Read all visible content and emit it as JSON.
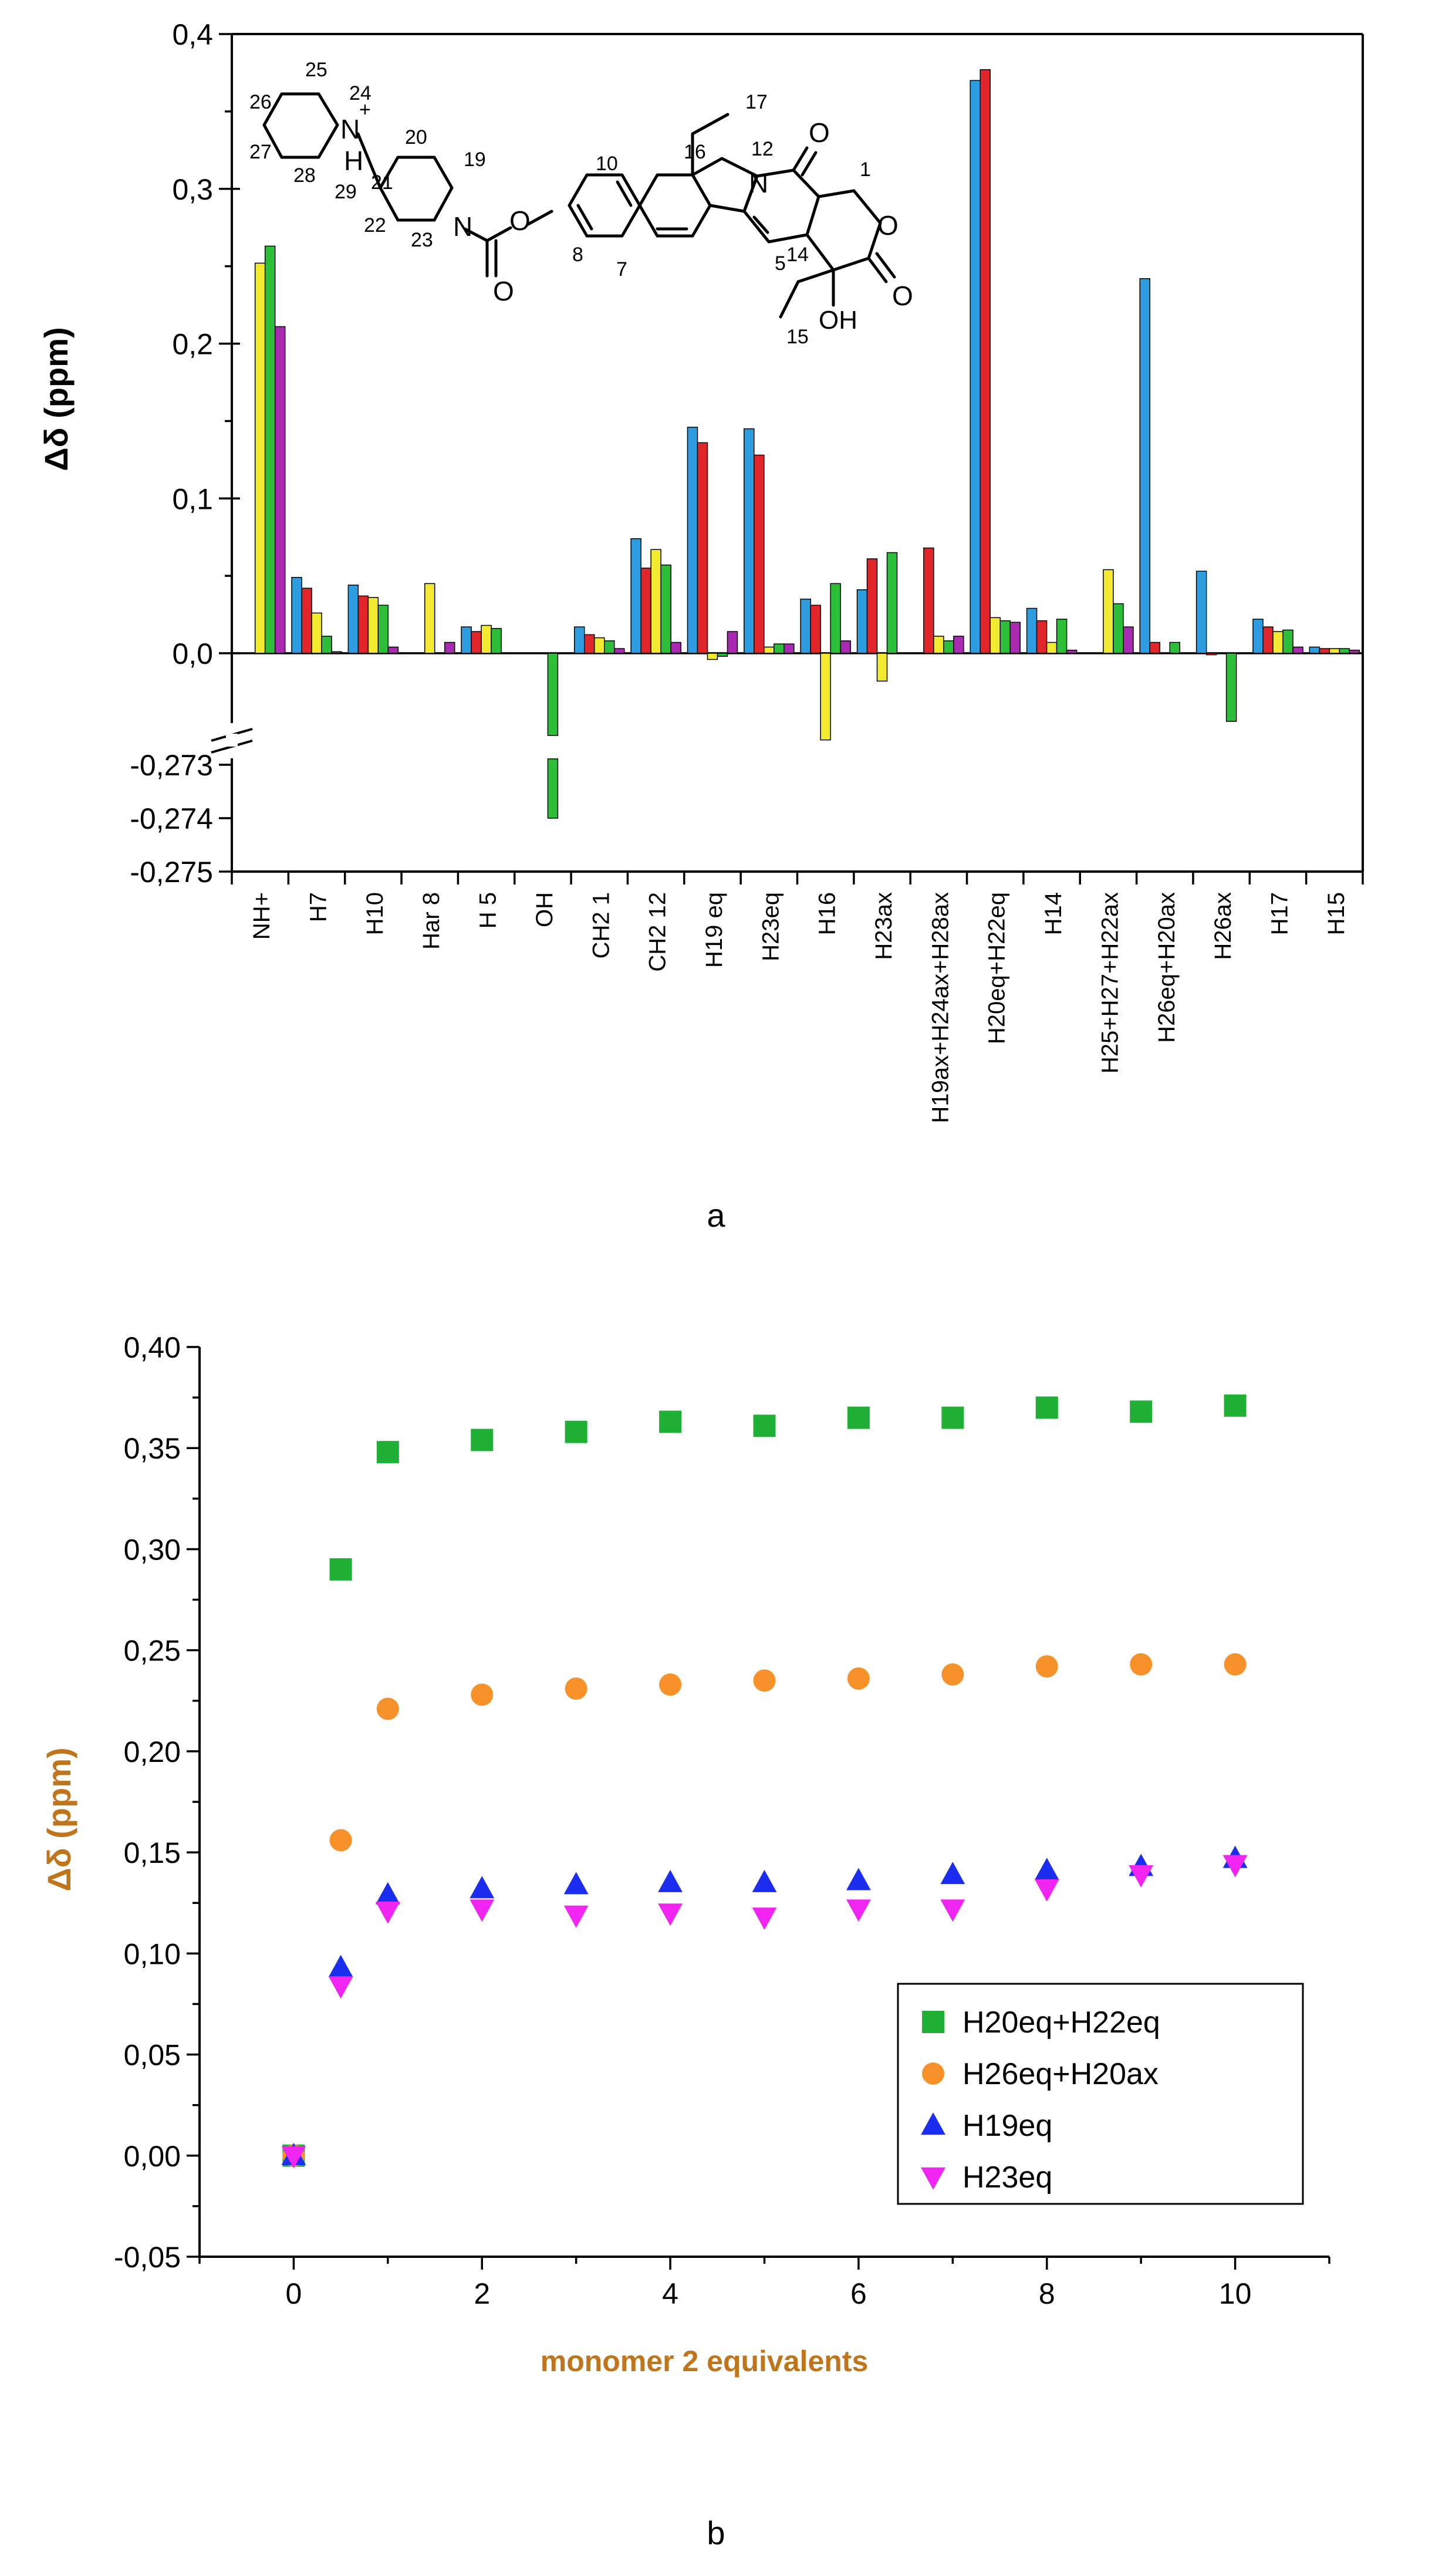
{
  "panel_a_letter": "a",
  "panel_b_letter": "b",
  "colors": {
    "blue": "#2e9de0",
    "red": "#e0262b",
    "yellow": "#f1ea30",
    "green": "#2ebf3a",
    "purple": "#a72ab0",
    "sq_green": "#21b036",
    "circle_orange": "#f7922a",
    "tri_blue": "#1b2ef0",
    "tri_magenta": "#f025f2",
    "axis_label_b": "#c0751b"
  },
  "molecule_labels": [
    "25",
    "24",
    "26",
    "27",
    "28",
    "29",
    "21",
    "20",
    "19",
    "22",
    "23",
    "10",
    "17",
    "16",
    "12",
    "8",
    "7",
    "5",
    "1",
    "14",
    "15"
  ],
  "molecule_text": {
    "n_plus": "N",
    "plus": "+",
    "h": "H",
    "n2": "N",
    "n3": "N",
    "o1": "O",
    "o2": "O",
    "o3": "O",
    "o4": "O",
    "o5": "O",
    "oh": "OH"
  },
  "chart_data": [
    {
      "type": "bar",
      "title": "",
      "xlabel": "",
      "ylabel": "Δδ (ppm)",
      "axis_break": "between 0.0 and -0.273",
      "yticks_upper": [
        "0,0",
        "0,1",
        "0,2",
        "0,3",
        "0,4"
      ],
      "yticks_lower": [
        "-0,273",
        "-0,274",
        "-0,275"
      ],
      "ylim_upper": [
        0.0,
        0.4
      ],
      "ylim_lower": [
        -0.275,
        -0.273
      ],
      "series_order": [
        "blue",
        "red",
        "yellow",
        "green",
        "purple"
      ],
      "categories": [
        "NH+",
        "H7",
        "H10",
        "Har 8",
        "H 5",
        "OH",
        "CH2 1",
        "CH2 12",
        "H19 eq",
        "H23eq",
        "H16",
        "H23ax",
        "H19ax+H24ax+H28ax",
        "H20eq+H22eq",
        "H14",
        "H25+H27+H22ax",
        "H26eq+H20ax",
        "H26ax",
        "H17",
        "H15"
      ],
      "bars": [
        [
          {
            "s": "yellow",
            "v": 0.252
          },
          {
            "s": "green",
            "v": 0.263
          },
          {
            "s": "purple",
            "v": 0.211
          }
        ],
        [
          {
            "s": "blue",
            "v": 0.049
          },
          {
            "s": "red",
            "v": 0.042
          },
          {
            "s": "yellow",
            "v": 0.026
          },
          {
            "s": "green",
            "v": 0.011
          },
          {
            "s": "purple",
            "v": 0.001
          }
        ],
        [
          {
            "s": "blue",
            "v": 0.044
          },
          {
            "s": "red",
            "v": 0.037
          },
          {
            "s": "yellow",
            "v": 0.036
          },
          {
            "s": "green",
            "v": 0.031
          },
          {
            "s": "purple",
            "v": 0.004
          }
        ],
        [
          {
            "s": "yellow",
            "v": 0.045
          },
          {
            "s": "purple",
            "v": 0.007
          }
        ],
        [
          {
            "s": "blue",
            "v": 0.017
          },
          {
            "s": "red",
            "v": 0.014
          },
          {
            "s": "yellow",
            "v": 0.018
          },
          {
            "s": "green",
            "v": 0.016
          }
        ],
        [
          {
            "s": "green",
            "v": -0.274
          }
        ],
        [
          {
            "s": "blue",
            "v": 0.017
          },
          {
            "s": "red",
            "v": 0.012
          },
          {
            "s": "yellow",
            "v": 0.01
          },
          {
            "s": "green",
            "v": 0.008
          },
          {
            "s": "purple",
            "v": 0.003
          }
        ],
        [
          {
            "s": "blue",
            "v": 0.074
          },
          {
            "s": "red",
            "v": 0.055
          },
          {
            "s": "yellow",
            "v": 0.067
          },
          {
            "s": "green",
            "v": 0.057
          },
          {
            "s": "purple",
            "v": 0.007
          }
        ],
        [
          {
            "s": "blue",
            "v": 0.146
          },
          {
            "s": "red",
            "v": 0.136
          },
          {
            "s": "yellow",
            "v": -0.004
          },
          {
            "s": "green",
            "v": -0.002
          },
          {
            "s": "purple",
            "v": 0.014
          }
        ],
        [
          {
            "s": "blue",
            "v": 0.145
          },
          {
            "s": "red",
            "v": 0.128
          },
          {
            "s": "yellow",
            "v": 0.004
          },
          {
            "s": "green",
            "v": 0.006
          },
          {
            "s": "purple",
            "v": 0.006
          }
        ],
        [
          {
            "s": "blue",
            "v": 0.035
          },
          {
            "s": "red",
            "v": 0.031
          },
          {
            "s": "yellow",
            "v": -0.056
          },
          {
            "s": "green",
            "v": 0.045
          },
          {
            "s": "purple",
            "v": 0.008
          }
        ],
        [
          {
            "s": "blue",
            "v": 0.041
          },
          {
            "s": "red",
            "v": 0.061
          },
          {
            "s": "yellow",
            "v": -0.018
          },
          {
            "s": "green",
            "v": 0.065
          }
        ],
        [
          {
            "s": "red",
            "v": 0.068
          },
          {
            "s": "yellow",
            "v": 0.011
          },
          {
            "s": "green",
            "v": 0.008
          },
          {
            "s": "purple",
            "v": 0.011
          }
        ],
        [
          {
            "s": "blue",
            "v": 0.37
          },
          {
            "s": "red",
            "v": 0.377
          },
          {
            "s": "yellow",
            "v": 0.023
          },
          {
            "s": "green",
            "v": 0.021
          },
          {
            "s": "purple",
            "v": 0.02
          }
        ],
        [
          {
            "s": "blue",
            "v": 0.029
          },
          {
            "s": "red",
            "v": 0.021
          },
          {
            "s": "yellow",
            "v": 0.007
          },
          {
            "s": "green",
            "v": 0.022
          },
          {
            "s": "purple",
            "v": 0.002
          }
        ],
        [
          {
            "s": "yellow",
            "v": 0.054
          },
          {
            "s": "green",
            "v": 0.032
          },
          {
            "s": "purple",
            "v": 0.017
          }
        ],
        [
          {
            "s": "blue",
            "v": 0.242
          },
          {
            "s": "red",
            "v": 0.007
          },
          {
            "s": "green",
            "v": 0.007
          }
        ],
        [
          {
            "s": "blue",
            "v": 0.053
          },
          {
            "s": "red",
            "v": -0.001
          },
          {
            "s": "green",
            "v": -0.044
          }
        ],
        [
          {
            "s": "blue",
            "v": 0.022
          },
          {
            "s": "red",
            "v": 0.017
          },
          {
            "s": "yellow",
            "v": 0.014
          },
          {
            "s": "green",
            "v": 0.015
          },
          {
            "s": "purple",
            "v": 0.004
          }
        ],
        [
          {
            "s": "blue",
            "v": 0.004
          },
          {
            "s": "red",
            "v": 0.003
          },
          {
            "s": "yellow",
            "v": 0.003
          },
          {
            "s": "green",
            "v": 0.003
          },
          {
            "s": "purple",
            "v": 0.002
          }
        ]
      ]
    },
    {
      "type": "scatter",
      "title": "",
      "xlabel": "monomer 2 equivalents",
      "ylabel": "Δδ (ppm)",
      "xlim": [
        -1,
        11
      ],
      "ylim": [
        -0.05,
        0.4
      ],
      "xticks": [
        0,
        2,
        4,
        6,
        8,
        10
      ],
      "xtick_labels": [
        "0",
        "2",
        "4",
        "6",
        "8",
        "10"
      ],
      "yticks": [
        -0.05,
        0,
        0.05,
        0.1,
        0.15,
        0.2,
        0.25,
        0.3,
        0.35,
        0.4
      ],
      "ytick_labels": [
        "-0,05",
        "0,00",
        "0,05",
        "0,10",
        "0,15",
        "0,20",
        "0,25",
        "0,30",
        "0,35",
        "0,40"
      ],
      "legend_position": "right",
      "x": [
        0,
        0.5,
        1,
        2,
        3,
        4,
        5,
        6,
        7,
        8,
        9,
        10
      ],
      "series": [
        {
          "name": "H20eq+H22eq",
          "marker": "square",
          "color": "sq_green",
          "values": [
            0.0,
            0.29,
            0.348,
            0.354,
            0.358,
            0.363,
            0.361,
            0.365,
            0.365,
            0.37,
            0.368,
            0.371
          ]
        },
        {
          "name": "H26eq+H20ax",
          "marker": "circle",
          "color": "circle_orange",
          "values": [
            0.0,
            0.156,
            0.221,
            0.228,
            0.231,
            0.233,
            0.235,
            0.236,
            0.238,
            0.242,
            0.243,
            0.243
          ]
        },
        {
          "name": "H19eq",
          "marker": "triangle-up",
          "color": "tri_blue",
          "values": [
            0.0,
            0.093,
            0.129,
            0.132,
            0.134,
            0.135,
            0.135,
            0.136,
            0.139,
            0.141,
            0.143,
            0.147
          ]
        },
        {
          "name": "H23eq",
          "marker": "triangle-down",
          "color": "tri_magenta",
          "values": [
            0.0,
            0.084,
            0.121,
            0.122,
            0.119,
            0.12,
            0.118,
            0.122,
            0.122,
            0.132,
            0.139,
            0.144
          ]
        }
      ]
    }
  ]
}
